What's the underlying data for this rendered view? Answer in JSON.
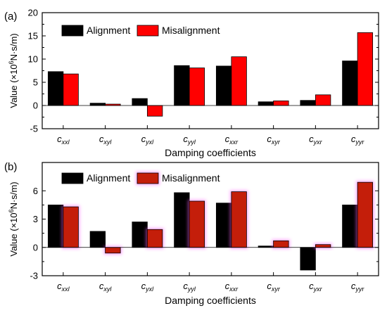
{
  "chart_data": [
    {
      "type": "bar",
      "panel_label": "(a)",
      "categories": [
        {
          "main": "c",
          "sub": "xxl"
        },
        {
          "main": "c",
          "sub": "xyl"
        },
        {
          "main": "c",
          "sub": "yxl"
        },
        {
          "main": "c",
          "sub": "yyl"
        },
        {
          "main": "c",
          "sub": "xxr"
        },
        {
          "main": "c",
          "sub": "xyr"
        },
        {
          "main": "c",
          "sub": "yxr"
        },
        {
          "main": "c",
          "sub": "yyr"
        }
      ],
      "series": [
        {
          "name": "Alignment",
          "color": "#000000",
          "values": [
            7.3,
            0.5,
            1.5,
            8.6,
            8.5,
            0.8,
            1.1,
            9.6
          ]
        },
        {
          "name": "Misalignment",
          "color": "#ff0000",
          "values": [
            6.8,
            0.3,
            -2.3,
            8.1,
            10.5,
            1.0,
            2.3,
            15.7
          ]
        }
      ],
      "ylim": [
        -5,
        20
      ],
      "yticks": [
        -5,
        0,
        5,
        10,
        15,
        20
      ],
      "ylabel": {
        "pre": "Value (×10",
        "sup": "6",
        "post": "N·s/m)"
      },
      "xlabel": "Damping coefficients",
      "legend_position": "top-left"
    },
    {
      "type": "bar",
      "panel_label": "(b)",
      "categories": [
        {
          "main": "c",
          "sub": "xxl"
        },
        {
          "main": "c",
          "sub": "xyl"
        },
        {
          "main": "c",
          "sub": "yxl"
        },
        {
          "main": "c",
          "sub": "yyl"
        },
        {
          "main": "c",
          "sub": "xxr"
        },
        {
          "main": "c",
          "sub": "xyr"
        },
        {
          "main": "c",
          "sub": "yxr"
        },
        {
          "main": "c",
          "sub": "yyr"
        }
      ],
      "series": [
        {
          "name": "Alignment",
          "color": "#000000",
          "values": [
            4.5,
            1.7,
            2.7,
            5.8,
            4.7,
            0.15,
            -2.4,
            4.5
          ]
        },
        {
          "name": "Misalignment",
          "color": "#c41e0a",
          "values": [
            4.3,
            -0.6,
            1.9,
            4.9,
            5.9,
            0.7,
            0.3,
            6.9
          ]
        }
      ],
      "ylim": [
        -3,
        9
      ],
      "yticks": [
        -3,
        0,
        3,
        6
      ],
      "ylabel": {
        "pre": "Value (×10",
        "sup": "6",
        "post": "N·s/m)"
      },
      "xlabel": "Damping coefficients",
      "legend_position": "top-left"
    }
  ]
}
